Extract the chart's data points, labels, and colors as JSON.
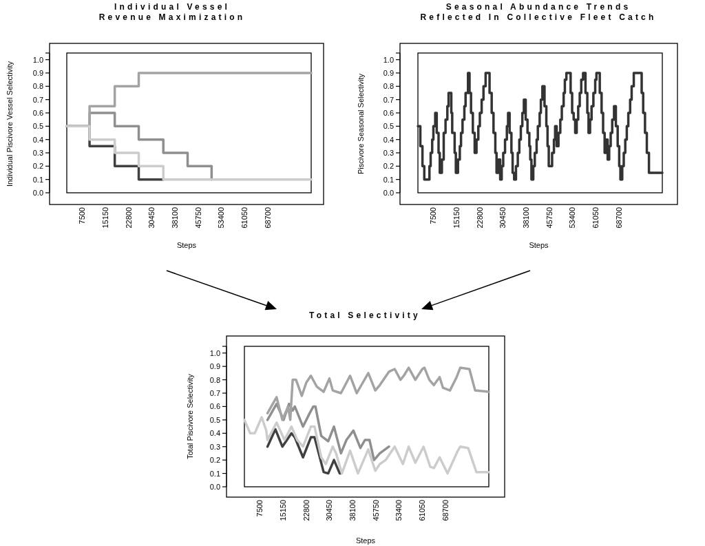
{
  "chart_data": [
    {
      "type": "step",
      "title": "Individual Vessel\nRevenue Maximization",
      "xlabel": "Steps",
      "ylabel": "Individual Piscivore Vessel Selectivity",
      "xlim": [
        2500,
        83000
      ],
      "xticks": [
        7500,
        15150,
        22800,
        30450,
        38100,
        45750,
        53400,
        61050,
        68700
      ],
      "ylim": [
        0,
        1.05
      ],
      "yticks": [
        {
          "value": 0,
          "label": "0.0"
        },
        0.1,
        0.2,
        0.3,
        0.4,
        0.5,
        0.6,
        0.7,
        0.8,
        0.9,
        {
          "value": 1,
          "label": "1.0"
        },
        {
          "value": 1.05,
          "label": null
        }
      ],
      "series": [
        {
          "color": "#404040",
          "x": [
            2500,
            10000,
            18300,
            26200,
            34300
          ],
          "values": [
            0.5,
            0.35,
            0.2,
            0.1,
            0.1
          ]
        },
        {
          "color": "#8f8f8f",
          "x": [
            2500,
            10000,
            18300,
            26200,
            34300,
            42300,
            50200
          ],
          "values": [
            0.5,
            0.6,
            0.5,
            0.4,
            0.3,
            0.2,
            0.1
          ]
        },
        {
          "color": "#a3a3a3",
          "x": [
            2500,
            10000,
            18300,
            26200,
            83000
          ],
          "values": [
            0.5,
            0.65,
            0.8,
            0.9,
            0.9
          ]
        },
        {
          "color": "#cccccc",
          "x": [
            2500,
            10000,
            18300,
            26200,
            34300,
            83000
          ],
          "values": [
            0.5,
            0.4,
            0.3,
            0.2,
            0.1,
            0.1
          ]
        }
      ]
    },
    {
      "type": "step",
      "title": "Seasonal Abundance Trends\nReflected In Collective Fleet Catch",
      "xlabel": "Steps",
      "ylabel": "Piscivore Seasonal Selectivity",
      "xlim": [
        2500,
        83000
      ],
      "xticks": [
        7500,
        15150,
        22800,
        30450,
        38100,
        45750,
        53400,
        61050,
        68700
      ],
      "ylim": [
        0,
        1.05
      ],
      "yticks": [
        {
          "value": 0,
          "label": "0.0"
        },
        0.1,
        0.2,
        0.3,
        0.4,
        0.5,
        0.6,
        0.7,
        0.8,
        0.9,
        {
          "value": 1,
          "label": "1.0"
        },
        {
          "value": 1.05,
          "label": null
        }
      ],
      "series": [
        {
          "color": "#333333",
          "x": [
            2500,
            3300,
            4000,
            4600,
            6300,
            6700,
            7200,
            7600,
            8200,
            8700,
            9300,
            9700,
            10400,
            11000,
            11600,
            12200,
            12600,
            13500,
            13800,
            14600,
            15000,
            15700,
            16300,
            16700,
            17200,
            17800,
            18200,
            19000,
            19500,
            20000,
            20600,
            21200,
            21800,
            22400,
            22900,
            23500,
            24100,
            24800,
            26100,
            26800,
            27400,
            28000,
            28400,
            29000,
            29600,
            30100,
            30600,
            31200,
            31800,
            32200,
            32700,
            33300,
            33700,
            34200,
            34800,
            35400,
            35900,
            36400,
            36900,
            37400,
            38000,
            38600,
            39200,
            39500,
            39900,
            40500,
            41000,
            41600,
            42000,
            42600,
            43000,
            43500,
            44200,
            44800,
            45200,
            45600,
            46700,
            47300,
            47700,
            48200,
            48800,
            49400,
            49900,
            50500,
            50900,
            51400,
            52800,
            53300,
            53800,
            54300,
            54800,
            55300,
            55800,
            56300,
            56900,
            57700,
            58300,
            58700,
            59200,
            59700,
            60300,
            60900,
            61300,
            62400,
            63000,
            63500,
            64000,
            64500,
            65000,
            65500,
            66000,
            66500,
            67100,
            67700,
            68300,
            68800,
            69200,
            69800,
            70300,
            70800,
            71300,
            71800,
            72400,
            72900,
            73600,
            76200,
            76700,
            77300,
            77900,
            78600,
            83000
          ],
          "values": [
            0.5,
            0.35,
            0.2,
            0.1,
            0.2,
            0.3,
            0.4,
            0.5,
            0.6,
            0.45,
            0.3,
            0.15,
            0.25,
            0.45,
            0.55,
            0.65,
            0.75,
            0.6,
            0.45,
            0.3,
            0.15,
            0.25,
            0.35,
            0.45,
            0.55,
            0.65,
            0.75,
            0.9,
            0.75,
            0.6,
            0.45,
            0.3,
            0.4,
            0.5,
            0.6,
            0.7,
            0.8,
            0.9,
            0.75,
            0.6,
            0.45,
            0.3,
            0.15,
            0.25,
            0.1,
            0.2,
            0.3,
            0.4,
            0.5,
            0.6,
            0.45,
            0.3,
            0.15,
            0.1,
            0.2,
            0.3,
            0.4,
            0.5,
            0.6,
            0.7,
            0.55,
            0.45,
            0.35,
            0.25,
            0.1,
            0.2,
            0.3,
            0.4,
            0.5,
            0.6,
            0.7,
            0.8,
            0.65,
            0.5,
            0.35,
            0.2,
            0.3,
            0.4,
            0.5,
            0.35,
            0.45,
            0.55,
            0.65,
            0.75,
            0.85,
            0.9,
            0.75,
            0.6,
            0.55,
            0.45,
            0.55,
            0.65,
            0.75,
            0.85,
            0.9,
            0.75,
            0.6,
            0.45,
            0.55,
            0.65,
            0.75,
            0.85,
            0.9,
            0.75,
            0.6,
            0.45,
            0.3,
            0.4,
            0.25,
            0.35,
            0.45,
            0.55,
            0.65,
            0.5,
            0.35,
            0.2,
            0.1,
            0.2,
            0.3,
            0.4,
            0.5,
            0.6,
            0.7,
            0.8,
            0.9,
            0.75,
            0.6,
            0.45,
            0.3,
            0.15,
            0.15
          ]
        }
      ]
    },
    {
      "type": "line",
      "title": "Total Selectivity",
      "xlabel": "Steps",
      "ylabel": "Total Piscivore Selectivity",
      "xlim": [
        2500,
        83000
      ],
      "xticks": [
        7500,
        15150,
        22800,
        30450,
        38100,
        45750,
        53400,
        61050,
        68700
      ],
      "ylim": [
        0,
        1.05
      ],
      "yticks": [
        {
          "value": 0,
          "label": "0.0"
        },
        0.1,
        0.2,
        0.3,
        0.4,
        0.5,
        0.6,
        0.7,
        0.8,
        0.9,
        {
          "value": 1,
          "label": "1.0"
        },
        {
          "value": 1.05,
          "label": null
        }
      ],
      "series": [
        {
          "color": "#404040",
          "x": [
            10100,
            12700,
            15000,
            18000,
            19100,
            21800,
            24400,
            25600,
            28600,
            30100,
            32000,
            33900,
            34300
          ],
          "values": [
            0.3,
            0.43,
            0.3,
            0.4,
            0.37,
            0.22,
            0.37,
            0.37,
            0.11,
            0.1,
            0.2,
            0.1,
            0.1
          ]
        },
        {
          "color": "#8f8f8f",
          "x": [
            10100,
            13100,
            15400,
            17200,
            18400,
            19100,
            21800,
            24000,
            25200,
            25900,
            27800,
            30100,
            32000,
            34300,
            36100,
            38400,
            40700,
            42200,
            43700,
            45200,
            47100,
            50100
          ],
          "values": [
            0.5,
            0.62,
            0.5,
            0.62,
            0.57,
            0.6,
            0.45,
            0.55,
            0.6,
            0.6,
            0.38,
            0.34,
            0.45,
            0.25,
            0.35,
            0.42,
            0.29,
            0.35,
            0.35,
            0.2,
            0.25,
            0.3
          ]
        },
        {
          "color": "#a3a3a3",
          "x": [
            10100,
            13100,
            15000,
            16900,
            17600,
            18400,
            19500,
            21400,
            22900,
            24400,
            26300,
            28600,
            30500,
            31600,
            34300,
            37300,
            39500,
            43300,
            45600,
            47100,
            50100,
            52000,
            53900,
            55000,
            56600,
            58800,
            61100,
            61800,
            63400,
            64900,
            66800,
            67900,
            70200,
            72400,
            73600,
            76600,
            78500,
            83000
          ],
          "values": [
            0.55,
            0.67,
            0.5,
            0.6,
            0.5,
            0.8,
            0.8,
            0.68,
            0.78,
            0.83,
            0.75,
            0.71,
            0.81,
            0.72,
            0.7,
            0.83,
            0.7,
            0.85,
            0.72,
            0.76,
            0.86,
            0.88,
            0.8,
            0.83,
            0.89,
            0.8,
            0.88,
            0.89,
            0.8,
            0.76,
            0.82,
            0.74,
            0.72,
            0.82,
            0.89,
            0.88,
            0.72,
            0.71
          ]
        },
        {
          "color": "#cccccc",
          "x": [
            2500,
            4400,
            5900,
            8200,
            9700,
            10100,
            13100,
            15700,
            18000,
            19900,
            21800,
            24400,
            25600,
            27800,
            29300,
            31600,
            32700,
            34600,
            37300,
            39900,
            43300,
            45600,
            47100,
            49000,
            52000,
            54700,
            56600,
            58800,
            61500,
            63700,
            64900,
            66800,
            69400,
            72800,
            73600,
            76200,
            78900,
            83000
          ],
          "values": [
            0.5,
            0.4,
            0.4,
            0.52,
            0.42,
            0.35,
            0.48,
            0.35,
            0.45,
            0.35,
            0.3,
            0.45,
            0.45,
            0.22,
            0.17,
            0.3,
            0.25,
            0.1,
            0.27,
            0.1,
            0.28,
            0.12,
            0.17,
            0.2,
            0.3,
            0.17,
            0.3,
            0.18,
            0.3,
            0.15,
            0.14,
            0.22,
            0.1,
            0.27,
            0.3,
            0.29,
            0.11,
            0.11
          ]
        }
      ]
    }
  ]
}
